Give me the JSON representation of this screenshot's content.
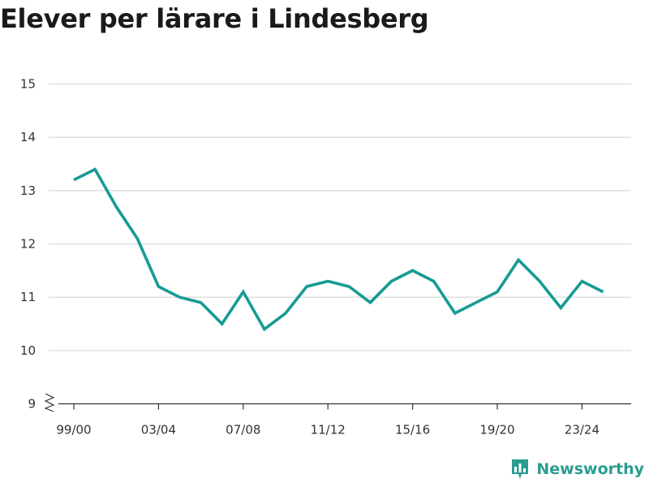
{
  "title": "Elever per lärare i Lindesberg",
  "brand": {
    "name": "Newsworthy"
  },
  "colors": {
    "line": "#169b93",
    "grid": "#dcdcdc",
    "axis": "#333333",
    "brand": "#2a9d8f"
  },
  "chart_data": {
    "type": "line",
    "title": "Elever per lärare i Lindesberg",
    "xlabel": "",
    "ylabel": "",
    "categories": [
      "99/00",
      "00/01",
      "01/02",
      "02/03",
      "03/04",
      "04/05",
      "05/06",
      "06/07",
      "07/08",
      "08/09",
      "09/10",
      "10/11",
      "11/12",
      "12/13",
      "13/14",
      "14/15",
      "15/16",
      "16/17",
      "17/18",
      "18/19",
      "19/20",
      "20/21",
      "21/22",
      "22/23",
      "23/24",
      "24/25"
    ],
    "x_tick_labels": [
      "99/00",
      "03/04",
      "07/08",
      "11/12",
      "15/16",
      "19/20",
      "23/24"
    ],
    "y_tick_labels": [
      "9",
      "10",
      "11",
      "12",
      "13",
      "14",
      "15"
    ],
    "ylim": [
      9,
      15
    ],
    "y_axis_broken": true,
    "grid": true,
    "series": [
      {
        "values": [
          13.2,
          13.4,
          12.7,
          12.1,
          11.2,
          11.0,
          10.9,
          10.5,
          11.1,
          10.4,
          10.7,
          11.2,
          11.3,
          11.2,
          10.9,
          11.3,
          11.5,
          11.3,
          10.7,
          10.9,
          11.1,
          11.7,
          11.3,
          10.8,
          11.3,
          11.1
        ]
      }
    ]
  }
}
